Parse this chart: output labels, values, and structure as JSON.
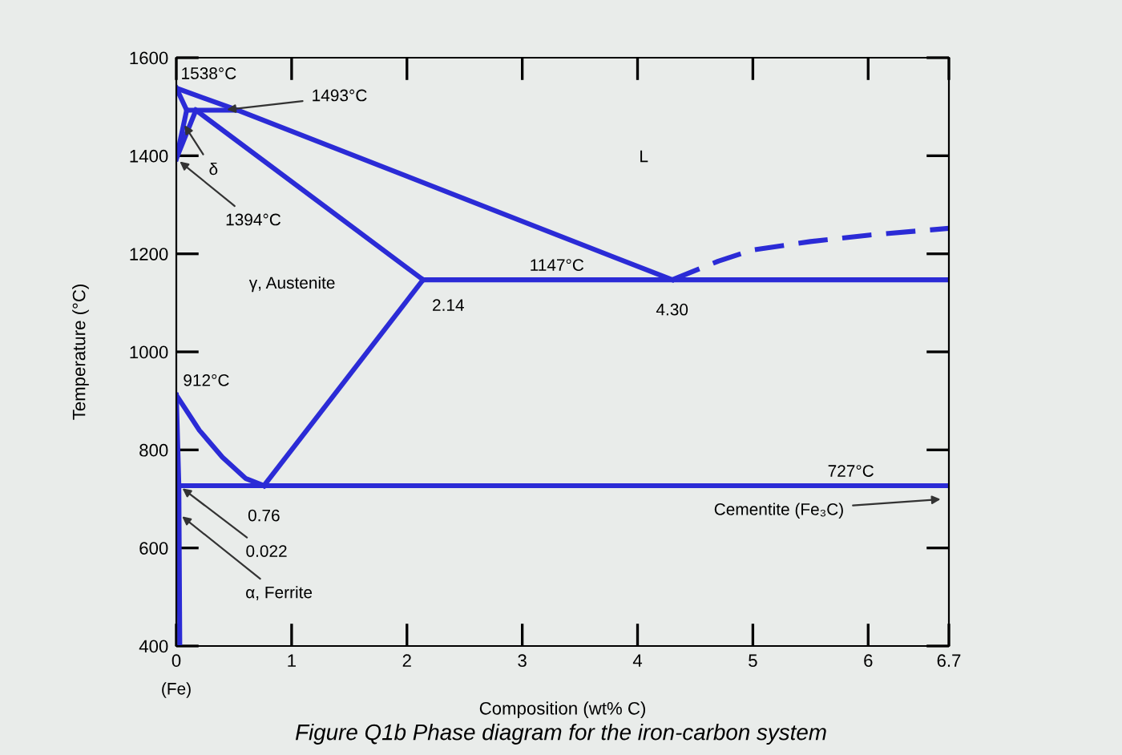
{
  "chart_data": {
    "type": "line",
    "xlabel": "Composition (wt% C)",
    "ylabel": "Temperature (°C)",
    "xlim": [
      0,
      6.7
    ],
    "ylim": [
      400,
      1600
    ],
    "xticks": [
      0,
      1,
      2,
      3,
      4,
      5,
      6,
      6.7
    ],
    "yticks": [
      400,
      600,
      800,
      1000,
      1200,
      1400,
      1600
    ],
    "grid": false,
    "legend": false,
    "line_style": "solid",
    "marker": "none",
    "series": [
      {
        "color": "#2b2bd6",
        "x": [
          0,
          0.53,
          4.3
        ],
        "values": [
          1538,
          1493,
          1147
        ]
      },
      {
        "color": "#2b2bd6",
        "x": [
          0,
          0.09
        ],
        "values": [
          1538,
          1493
        ]
      },
      {
        "color": "#2b2bd6",
        "x": [
          0,
          0.09
        ],
        "values": [
          1394,
          1493
        ]
      },
      {
        "color": "#2b2bd6",
        "x": [
          0,
          0.17
        ],
        "values": [
          1394,
          1493
        ]
      },
      {
        "color": "#2b2bd6",
        "x": [
          0.09,
          0.53
        ],
        "values": [
          1493,
          1493
        ]
      },
      {
        "color": "#2b2bd6",
        "x": [
          0.17,
          2.14
        ],
        "values": [
          1493,
          1147
        ]
      },
      {
        "color": "#2b2bd6",
        "x": [
          2.14,
          6.7
        ],
        "values": [
          1147,
          1147
        ]
      },
      {
        "color": "#2b2bd6",
        "line_style": "dashed",
        "x": [
          4.3,
          4.7,
          5.0,
          5.5,
          6.0,
          6.7
        ],
        "values": [
          1147,
          1185,
          1208,
          1225,
          1238,
          1252
        ]
      },
      {
        "color": "#2b2bd6",
        "x": [
          0,
          0.2,
          0.4,
          0.6,
          0.76
        ],
        "values": [
          912,
          840,
          785,
          742,
          727
        ]
      },
      {
        "color": "#2b2bd6",
        "x": [
          0.76,
          2.14
        ],
        "values": [
          727,
          1147
        ]
      },
      {
        "color": "#2b2bd6",
        "x": [
          0.022,
          6.7
        ],
        "values": [
          727,
          727
        ]
      },
      {
        "color": "#2b2bd6",
        "x": [
          0,
          0.022,
          0.03
        ],
        "values": [
          912,
          727,
          400
        ]
      }
    ],
    "annotations": [
      {
        "text": "1538°C",
        "x": 0,
        "y": 1538
      },
      {
        "text": "1493°C",
        "x": 0.4,
        "y": 1493
      },
      {
        "text": "δ",
        "x": 0.05,
        "y": 1470
      },
      {
        "text": "1394°C",
        "x": 0,
        "y": 1394
      },
      "L",
      {
        "text": "1147°C",
        "x": 3.3,
        "y": 1147
      },
      {
        "text": "2.14",
        "x": 2.14,
        "y": 1147
      },
      {
        "text": "4.30",
        "x": 4.3,
        "y": 1147
      },
      "γ, Austenite",
      {
        "text": "912°C",
        "x": 0,
        "y": 912
      },
      {
        "text": "727°C",
        "x": 5.85,
        "y": 727
      },
      {
        "text": "0.76",
        "x": 0.76,
        "y": 727
      },
      {
        "text": "0.022",
        "x": 0.022,
        "y": 727
      },
      {
        "text": "α, Ferrite",
        "x": 0.02,
        "y": 670
      },
      "Cementite (Fe₃C)",
      "(Fe)",
      "Figure Q1b Phase diagram for the iron-carbon system"
    ]
  }
}
